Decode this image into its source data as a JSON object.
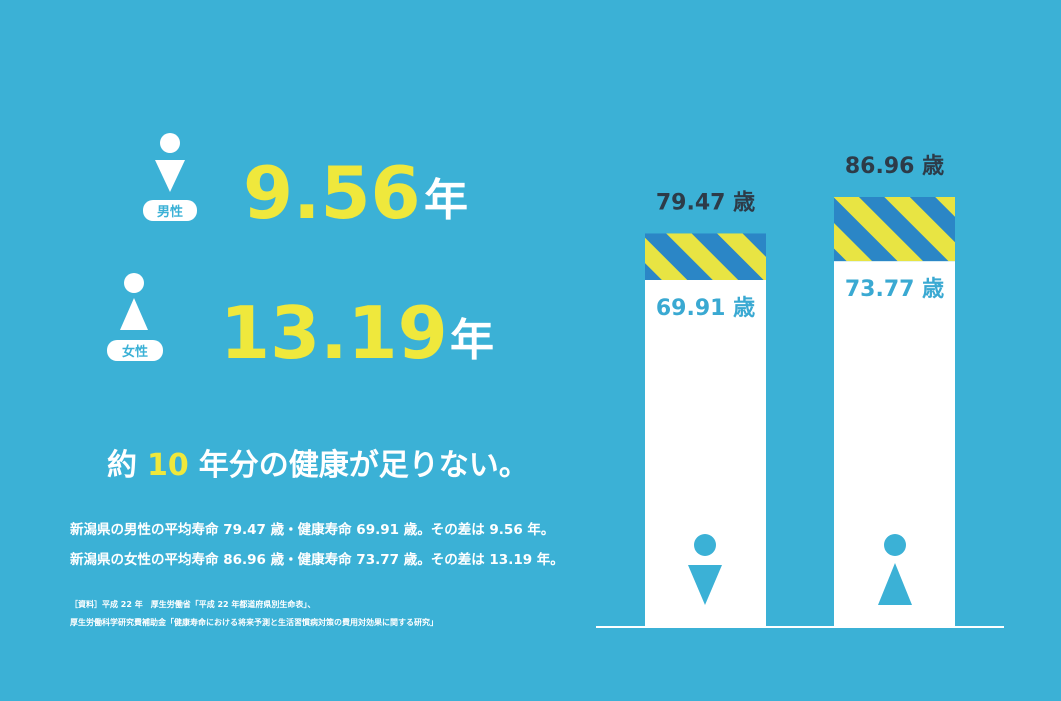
{
  "summary": [
    {
      "label": "男性",
      "gap": "9.56",
      "unit": "年"
    },
    {
      "label": "女性",
      "gap": "13.19",
      "unit": "年"
    }
  ],
  "headline": {
    "before": "約",
    "highlight": "10",
    "after": "年分の健康が足りない。"
  },
  "notes": [
    "新潟県の男性の平均寿命 79.47 歳・健康寿命 69.91 歳。その差は 9.56 年。",
    "新潟県の女性の平均寿命 86.96 歳・健康寿命 73.77 歳。その差は 13.19 年。"
  ],
  "sources": [
    "［資料］平成 22 年　厚生労働省「平成 22 年都道府県別生命表」、",
    "厚生労働科学研究費補助金「健康寿命における将来予測と生活習慣病対策の費用対効果に関する研究」"
  ],
  "bars": [
    {
      "average": {
        "value": 79.47,
        "label": "79.47 歳"
      },
      "healthy": {
        "value": 69.91,
        "label": "69.91 歳"
      }
    },
    {
      "average": {
        "value": 86.96,
        "label": "86.96 歳"
      },
      "healthy": {
        "value": 73.77,
        "label": "73.77 歳"
      }
    }
  ]
}
